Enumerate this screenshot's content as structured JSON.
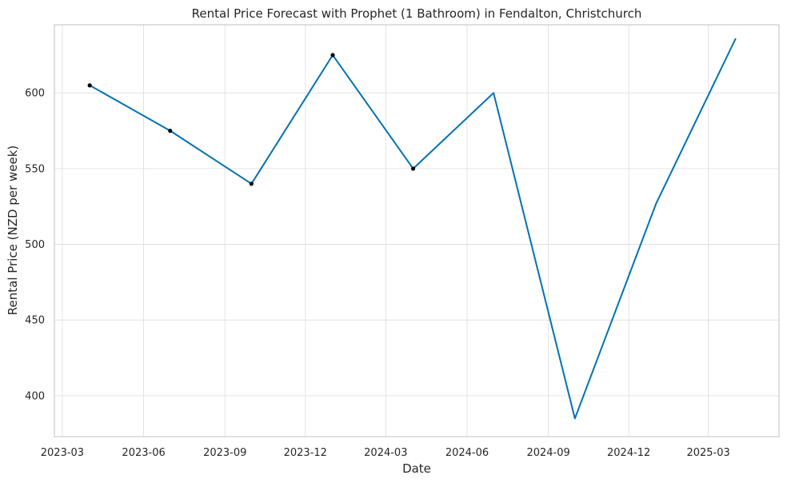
{
  "chart_data": {
    "type": "line",
    "title": "Rental Price Forecast with Prophet (1 Bathroom) in Fendalton, Christchurch",
    "xlabel": "Date",
    "ylabel": "Rental Price (NZD per week)",
    "x_ticks": [
      "2023-03",
      "2023-06",
      "2023-09",
      "2023-12",
      "2024-03",
      "2024-06",
      "2024-09",
      "2024-12",
      "2025-03"
    ],
    "y_ticks": [
      400,
      450,
      500,
      550,
      600
    ],
    "xlim": [
      "2023-02-20",
      "2025-05-20"
    ],
    "ylim": [
      373,
      645
    ],
    "grid": true,
    "legend": "none",
    "forecast": {
      "color": "#0072b2",
      "x": [
        "2023-04-01",
        "2023-07-01",
        "2023-10-01",
        "2024-01-01",
        "2024-04-01",
        "2024-07-01",
        "2024-10-01",
        "2025-01-01",
        "2025-04-01"
      ],
      "y": [
        605,
        575,
        540,
        625,
        550,
        600,
        385,
        527,
        636
      ]
    },
    "observed": {
      "color": "#000000",
      "x": [
        "2023-04-01",
        "2023-07-01",
        "2023-10-01",
        "2024-01-01",
        "2024-04-01"
      ],
      "y": [
        605,
        575,
        540,
        625,
        550
      ]
    }
  }
}
